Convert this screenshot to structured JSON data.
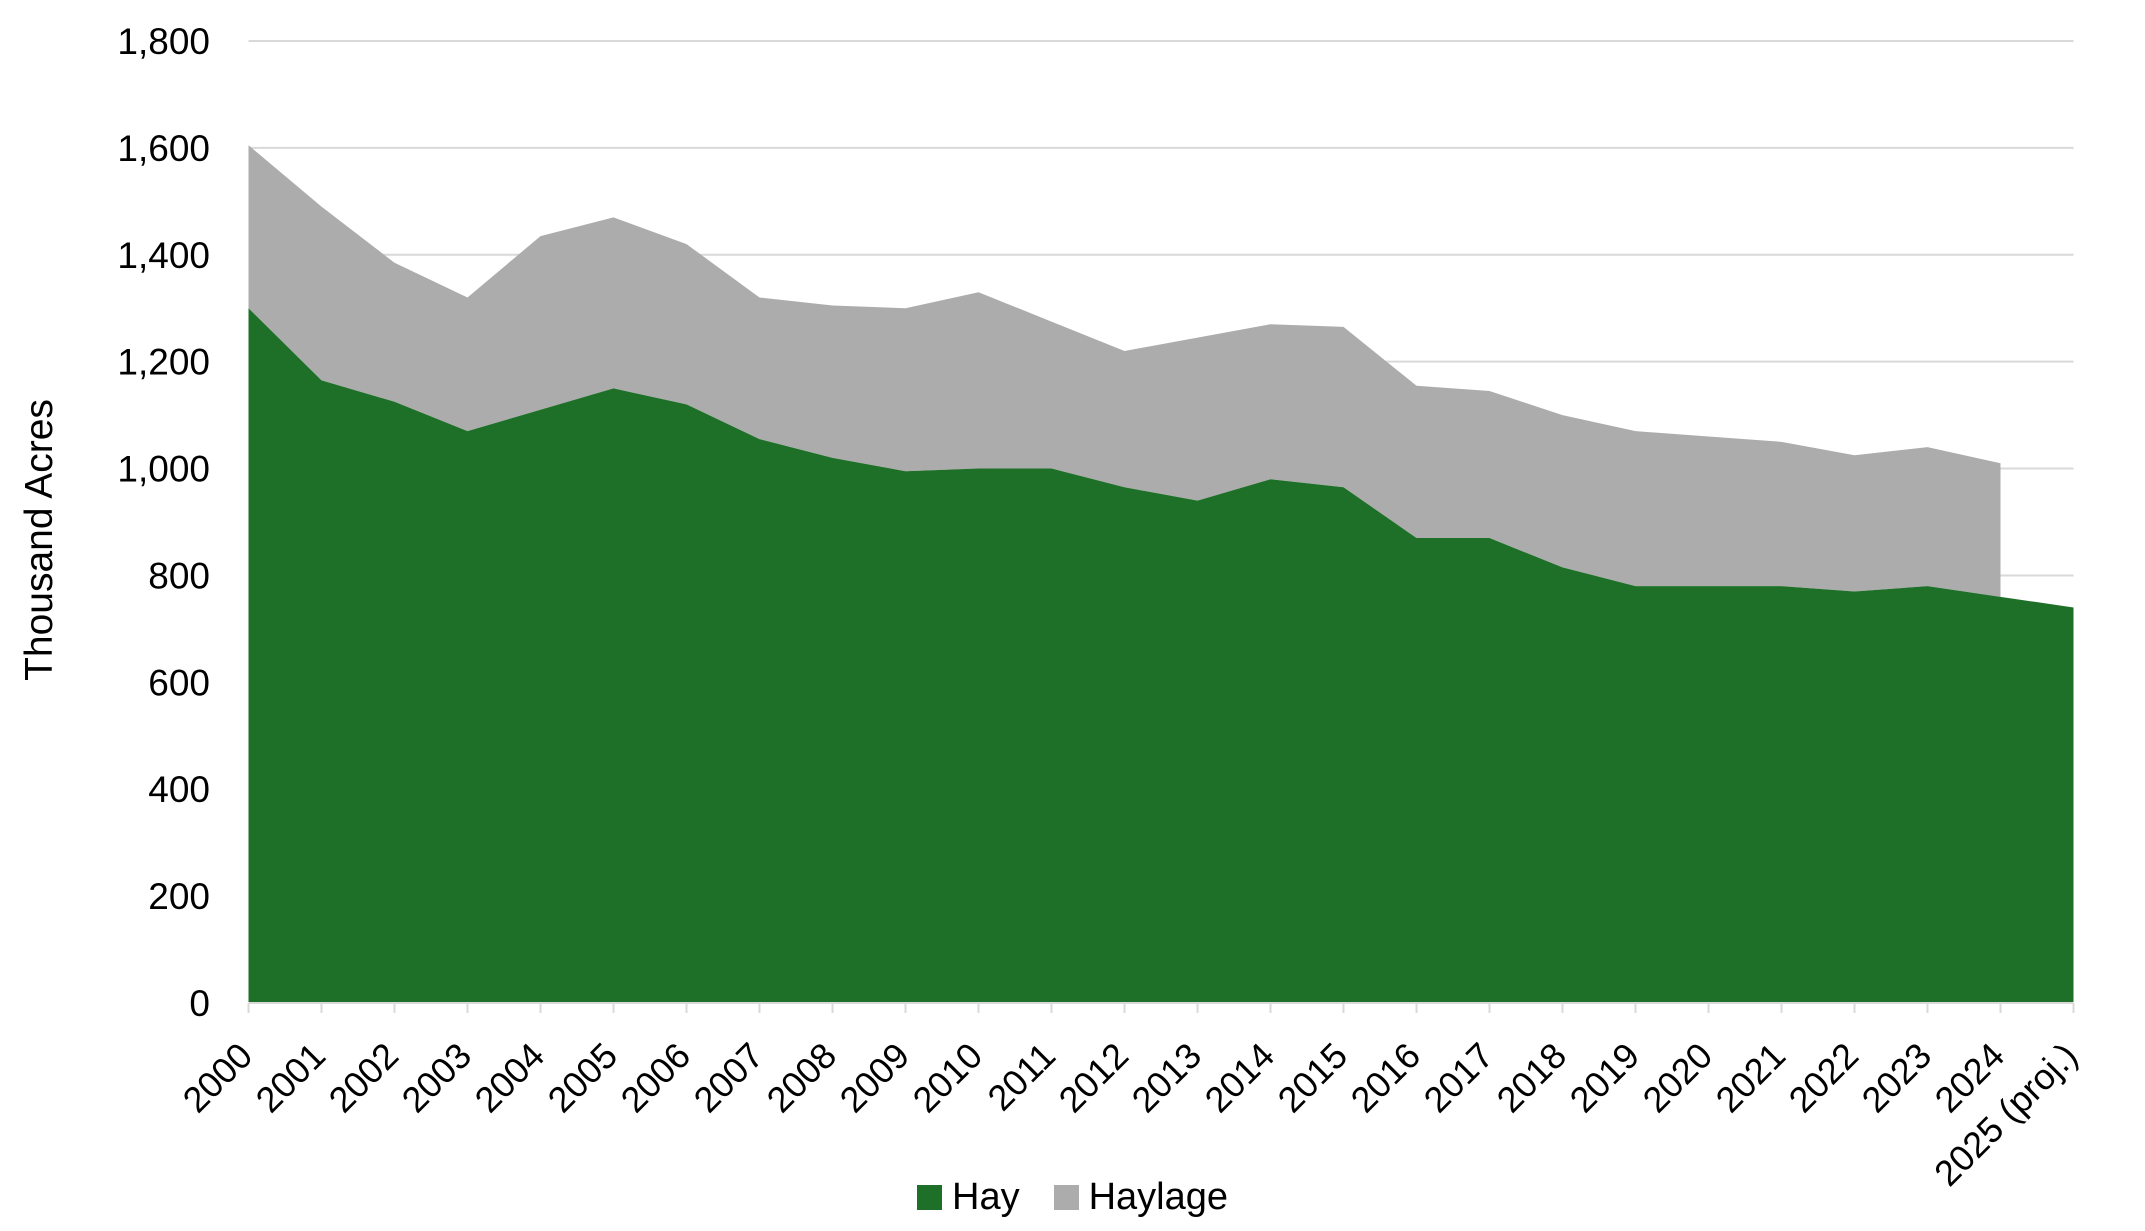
{
  "page": {
    "background": "#FFFFFF"
  },
  "chart_data": {
    "type": "area",
    "stacked": true,
    "title": "",
    "xlabel": "",
    "ylabel": "Thousand Acres",
    "ylim": [
      0,
      1800
    ],
    "ytick_step": 200,
    "ytick_labels": [
      "0",
      "200",
      "400",
      "600",
      "800",
      "1,000",
      "1,200",
      "1,400",
      "1,600",
      "1,800"
    ],
    "grid": true,
    "legend_position": "bottom",
    "x": [
      "2000",
      "2001",
      "2002",
      "2003",
      "2004",
      "2005",
      "2006",
      "2007",
      "2008",
      "2009",
      "2010",
      "2011",
      "2012",
      "2013",
      "2014",
      "2015",
      "2016",
      "2017",
      "2018",
      "2019",
      "2020",
      "2021",
      "2022",
      "2023",
      "2024",
      "2025 (proj.)"
    ],
    "series": [
      {
        "name": "Hay",
        "color": "#1E7028",
        "values": [
          1300,
          1165,
          1125,
          1070,
          1110,
          1150,
          1120,
          1055,
          1020,
          995,
          1000,
          1000,
          965,
          940,
          980,
          965,
          870,
          870,
          815,
          780,
          780,
          780,
          770,
          780,
          760,
          740
        ]
      },
      {
        "name": "Haylage",
        "color": "#ACACAC",
        "values": [
          305,
          325,
          260,
          250,
          325,
          320,
          300,
          265,
          285,
          305,
          330,
          275,
          255,
          305,
          290,
          300,
          285,
          275,
          285,
          290,
          280,
          270,
          255,
          260,
          250,
          null
        ]
      }
    ],
    "colors": {
      "gridline": "#D9D9D9",
      "axis": "#D9D9D9",
      "text": "#000000"
    }
  }
}
